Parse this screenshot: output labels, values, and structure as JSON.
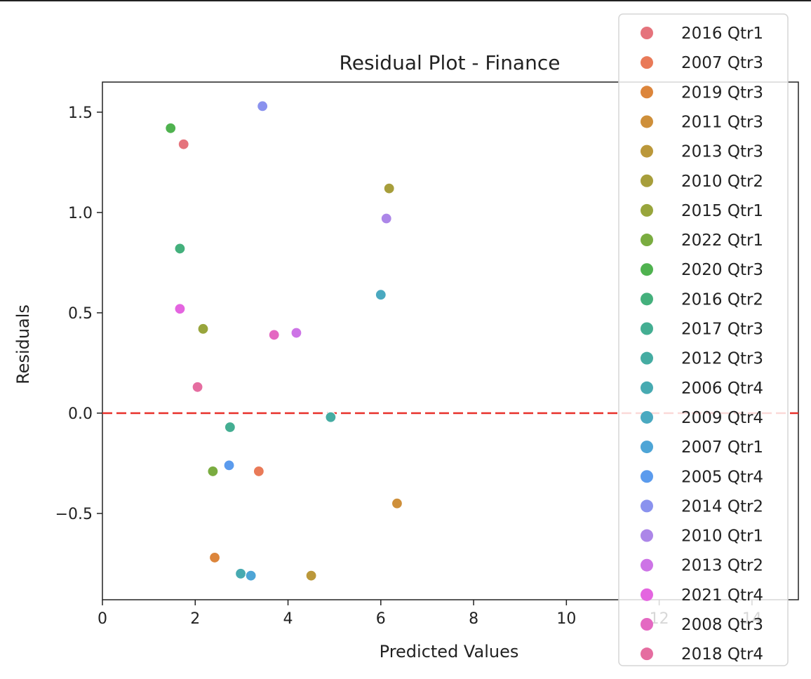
{
  "chart_data": {
    "type": "scatter",
    "title": "Residual Plot - Finance",
    "xlabel": "Predicted Values",
    "ylabel": "Residuals",
    "xlim": [
      0,
      15
    ],
    "ylim": [
      -0.93,
      1.65
    ],
    "xticks": [
      0,
      2,
      4,
      6,
      8,
      10,
      12,
      14
    ],
    "yticks": [
      -0.5,
      0.0,
      0.5,
      1.0,
      1.5
    ],
    "xtick_labels": [
      "0",
      "2",
      "4",
      "6",
      "8",
      "10",
      "12",
      "14"
    ],
    "ytick_labels": [
      "−0.5",
      "0.0",
      "0.5",
      "1.0",
      "1.5"
    ],
    "reference_line": {
      "y": 0.0,
      "style": "dashed",
      "color": "#e8302a"
    },
    "legend_position": "top-right, extending outside the plot",
    "grid": false,
    "series": [
      {
        "name": "2016 Qtr1",
        "color": "#e5737c",
        "x": 1.75,
        "y": 1.34
      },
      {
        "name": "2007 Qtr3",
        "color": "#e97a58",
        "x": 3.37,
        "y": -0.29
      },
      {
        "name": "2019 Qtr3",
        "color": "#dc853b",
        "x": 2.42,
        "y": -0.72
      },
      {
        "name": "2011 Qtr3",
        "color": "#ce8f3a",
        "x": 6.35,
        "y": -0.45
      },
      {
        "name": "2013 Qtr3",
        "color": "#bb983a",
        "x": 4.5,
        "y": -0.81
      },
      {
        "name": "2010 Qtr2",
        "color": "#a79e3b",
        "x": 6.18,
        "y": 1.12
      },
      {
        "name": "2015 Qtr1",
        "color": "#98a53c",
        "x": 2.17,
        "y": 0.42
      },
      {
        "name": "2022 Qtr1",
        "color": "#7aac40",
        "x": 2.38,
        "y": -0.29
      },
      {
        "name": "2020 Qtr3",
        "color": "#4fb24f",
        "x": 1.47,
        "y": 1.42
      },
      {
        "name": "2016 Qtr2",
        "color": "#44b07c",
        "x": 1.67,
        "y": 0.82
      },
      {
        "name": "2017 Qtr3",
        "color": "#44ae92",
        "x": 2.75,
        "y": -0.07
      },
      {
        "name": "2012 Qtr3",
        "color": "#45aca2",
        "x": 4.92,
        "y": -0.02
      },
      {
        "name": "2006 Qtr4",
        "color": "#47aab1",
        "x": 2.98,
        "y": -0.8
      },
      {
        "name": "2009 Qtr4",
        "color": "#4aa9c0",
        "x": 6.0,
        "y": 0.59
      },
      {
        "name": "2007 Qtr1",
        "color": "#4ea5d6",
        "x": 3.2,
        "y": -0.81
      },
      {
        "name": "2005 Qtr4",
        "color": "#5b9bed",
        "x": 2.73,
        "y": -0.26
      },
      {
        "name": "2014 Qtr2",
        "color": "#8a92ee",
        "x": 3.45,
        "y": 1.53
      },
      {
        "name": "2010 Qtr1",
        "color": "#ac86e8",
        "x": 6.12,
        "y": 0.97
      },
      {
        "name": "2013 Qtr2",
        "color": "#cd74e6",
        "x": 4.18,
        "y": 0.4
      },
      {
        "name": "2021 Qtr4",
        "color": "#e465e0",
        "x": 1.67,
        "y": 0.52
      },
      {
        "name": "2008 Qtr3",
        "color": "#e468c2",
        "x": 3.7,
        "y": 0.39
      },
      {
        "name": "2018 Qtr4",
        "color": "#e56da0",
        "x": 2.05,
        "y": 0.13
      }
    ]
  }
}
